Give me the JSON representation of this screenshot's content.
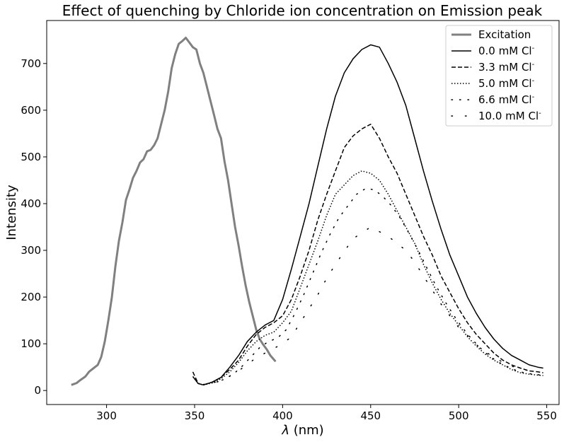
{
  "chart_data": {
    "type": "line",
    "title": "Effect of quenching by Chloride ion concentration on Emission peak",
    "xlabel_prefix": "λ",
    "xlabel_suffix": " (nm)",
    "ylabel": "Intensity",
    "xlim": [
      266,
      557
    ],
    "ylim": [
      -30,
      792
    ],
    "xticks": [
      300,
      350,
      400,
      450,
      500,
      550
    ],
    "yticks": [
      0,
      100,
      200,
      300,
      400,
      500,
      600,
      700
    ],
    "grid": false,
    "legend_position": "top-right",
    "series": [
      {
        "name": "Excitation",
        "style": "thick-solid",
        "color": "#808080",
        "x": [
          280,
          283,
          285,
          288,
          290,
          292,
          295,
          297,
          299,
          301,
          303,
          305,
          307,
          309,
          311,
          313,
          315,
          317,
          319,
          321,
          323,
          325,
          327,
          329,
          331,
          333,
          335,
          337,
          339,
          341,
          343,
          345,
          347,
          349,
          351,
          353,
          355,
          357,
          359,
          361,
          363,
          365,
          367,
          369,
          371,
          373,
          375,
          377,
          379,
          381,
          383,
          385,
          387,
          389,
          391,
          393,
          396
        ],
        "y": [
          12,
          16,
          22,
          30,
          40,
          46,
          55,
          72,
          105,
          150,
          200,
          265,
          320,
          360,
          408,
          430,
          455,
          470,
          488,
          495,
          512,
          515,
          525,
          540,
          570,
          600,
          640,
          690,
          720,
          742,
          748,
          755,
          745,
          735,
          730,
          700,
          680,
          650,
          620,
          590,
          560,
          540,
          490,
          450,
          400,
          350,
          310,
          265,
          225,
          190,
          160,
          130,
          110,
          98,
          88,
          75,
          62
        ]
      },
      {
        "name": "0.0 mM Cl",
        "name_sup": "-",
        "style": "solid",
        "color": "#000000",
        "x": [
          349,
          352,
          355,
          360,
          365,
          370,
          375,
          380,
          385,
          390,
          395,
          400,
          405,
          410,
          415,
          420,
          425,
          430,
          435,
          440,
          445,
          450,
          455,
          460,
          465,
          470,
          475,
          480,
          485,
          490,
          495,
          500,
          505,
          510,
          515,
          520,
          525,
          530,
          535,
          540,
          545,
          548
        ],
        "y": [
          30,
          15,
          12,
          18,
          28,
          50,
          75,
          105,
          125,
          140,
          150,
          195,
          260,
          330,
          400,
          480,
          560,
          630,
          680,
          710,
          730,
          740,
          735,
          700,
          660,
          610,
          540,
          470,
          405,
          345,
          290,
          245,
          200,
          165,
          135,
          110,
          90,
          75,
          65,
          55,
          50,
          48
        ]
      },
      {
        "name": "3.3 mM Cl",
        "name_sup": "-",
        "style": "dashed",
        "color": "#000000",
        "x": [
          349,
          352,
          355,
          360,
          365,
          370,
          375,
          380,
          385,
          390,
          395,
          400,
          405,
          410,
          415,
          420,
          425,
          430,
          435,
          440,
          445,
          450,
          455,
          460,
          465,
          470,
          475,
          480,
          485,
          490,
          495,
          500,
          505,
          510,
          515,
          520,
          525,
          530,
          535,
          540,
          545,
          548
        ],
        "y": [
          40,
          15,
          12,
          18,
          28,
          45,
          65,
          95,
          120,
          135,
          145,
          160,
          195,
          245,
          300,
          365,
          420,
          470,
          520,
          545,
          560,
          570,
          540,
          500,
          465,
          420,
          375,
          330,
          290,
          245,
          210,
          175,
          145,
          120,
          100,
          80,
          65,
          55,
          48,
          42,
          40,
          38
        ]
      },
      {
        "name": "5.0 mM Cl",
        "name_sup": "-",
        "style": "dotted",
        "color": "#000000",
        "x": [
          349,
          352,
          355,
          360,
          365,
          370,
          375,
          380,
          385,
          390,
          395,
          400,
          405,
          410,
          415,
          420,
          425,
          430,
          435,
          440,
          445,
          450,
          455,
          460,
          465,
          470,
          475,
          480,
          485,
          490,
          495,
          500,
          505,
          510,
          515,
          520,
          525,
          530,
          535,
          540,
          545,
          548
        ],
        "y": [
          30,
          15,
          12,
          16,
          25,
          40,
          60,
          85,
          105,
          118,
          125,
          145,
          170,
          220,
          270,
          320,
          375,
          420,
          440,
          460,
          470,
          465,
          450,
          420,
          385,
          350,
          315,
          270,
          230,
          195,
          165,
          140,
          115,
          95,
          78,
          65,
          55,
          45,
          38,
          35,
          33,
          32
        ]
      },
      {
        "name": "6.6 mM Cl",
        "name_sup": "-",
        "style": "sparse-dots",
        "color": "#000000",
        "x": [
          352,
          357,
          362,
          367,
          372,
          377,
          382,
          387,
          392,
          397,
          402,
          407,
          412,
          417,
          422,
          427,
          432,
          437,
          442,
          447,
          452,
          457,
          462,
          467,
          472,
          477,
          482,
          487,
          492,
          497,
          502,
          507,
          512,
          517,
          522,
          527,
          532,
          537,
          542,
          547
        ],
        "y": [
          15,
          14,
          18,
          24,
          35,
          52,
          72,
          92,
          105,
          112,
          130,
          165,
          205,
          250,
          295,
          335,
          370,
          395,
          420,
          432,
          430,
          415,
          395,
          368,
          335,
          300,
          262,
          225,
          192,
          162,
          135,
          112,
          92,
          75,
          62,
          52,
          44,
          38,
          35,
          33
        ]
      },
      {
        "name": "10.0 mM Cl",
        "name_sup": "-",
        "style": "sparse-dots-wide",
        "color": "#000000",
        "x": [
          355,
          365,
          375,
          385,
          395,
          400,
          405,
          410,
          415,
          420,
          425,
          430,
          440,
          450,
          460,
          470,
          475,
          480,
          485,
          490,
          495,
          500,
          505,
          510,
          520,
          530,
          540,
          545
        ],
        "y": [
          13,
          20,
          42,
          70,
          90,
          100,
          115,
          145,
          175,
          205,
          240,
          270,
          325,
          350,
          330,
          300,
          275,
          245,
          215,
          185,
          160,
          135,
          118,
          98,
          70,
          52,
          42,
          36
        ]
      }
    ]
  }
}
